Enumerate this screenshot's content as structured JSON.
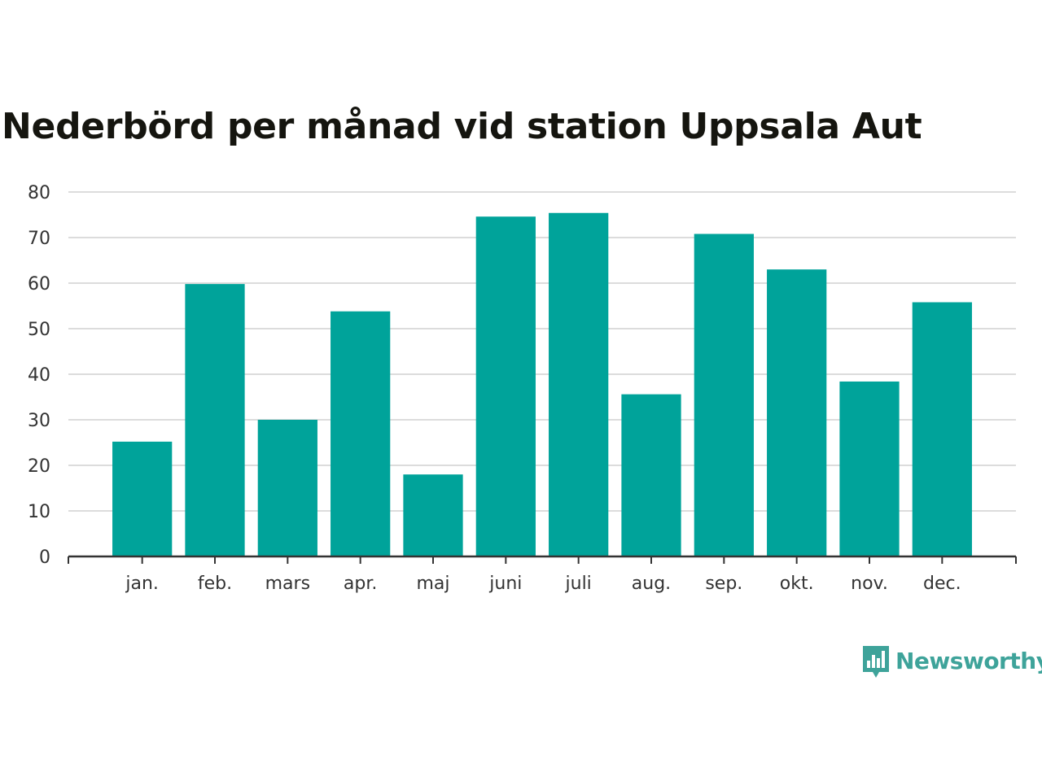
{
  "chart_data": {
    "type": "bar",
    "title": "Nederbörd per månad vid station Uppsala Aut",
    "categories": [
      "jan.",
      "feb.",
      "mars",
      "apr.",
      "maj",
      "juni",
      "juli",
      "aug.",
      "sep.",
      "okt.",
      "nov.",
      "dec."
    ],
    "values": [
      25.2,
      59.8,
      30.0,
      53.8,
      18.0,
      74.6,
      75.4,
      35.6,
      70.8,
      63.0,
      38.4,
      55.8
    ],
    "xlabel": "",
    "ylabel": "",
    "ylim": [
      0,
      80
    ],
    "yticks": [
      0,
      10,
      20,
      30,
      40,
      50,
      60,
      70,
      80
    ],
    "grid": true,
    "bar_color": "#00a39a"
  },
  "brand": {
    "name": "Newsworthy",
    "color": "#3ea39a",
    "icon": "bar-chart-speech-bubble-icon"
  }
}
